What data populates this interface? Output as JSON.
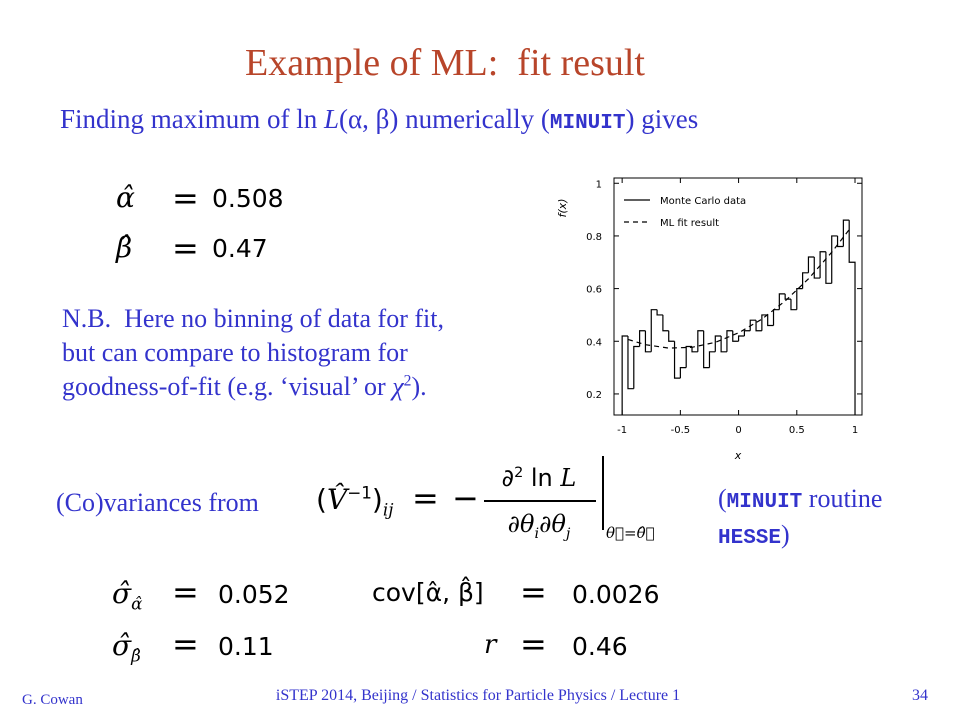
{
  "title": "Example of ML:  fit result",
  "intro": {
    "text": "Finding maximum of ln ",
    "L": "L",
    "args": "(α, β) numerically (",
    "code": "MINUIT",
    "end": ") gives"
  },
  "equals": "=",
  "estimates": [
    {
      "symbol": "α̂",
      "value": "0.508"
    },
    {
      "symbol": "β̂",
      "value": "0.47"
    }
  ],
  "note": {
    "lines": [
      "N.B.  Here no binning of data for fit,",
      "but can compare to histogram for",
      "goodness-of-fit (e.g. ‘visual’ or "
    ],
    "chi": "χ",
    "sup": "2",
    "end": ")."
  },
  "covariance": {
    "label": "(Co)variances from",
    "open": "(",
    "V": "V̂",
    "sup": "−1",
    "close": ")",
    "sub": "ij",
    "minus": "−",
    "numerator": "∂",
    "num_sup": "2",
    "num_rest": " ln ",
    "num_L": "L",
    "den1": "∂θ",
    "den_i": "i",
    "den2": "∂θ",
    "den_j": "j",
    "at": "θ⃗=θ̂⃗"
  },
  "routine": {
    "open": "(",
    "code1": "MINUIT",
    "text": " routine",
    "code2": "HESSE",
    "close": ")"
  },
  "results": {
    "sigma": "σ̂",
    "sigma_alpha_sub": "α̂",
    "sigma_alpha": "0.052",
    "sigma_beta_sub": "β̂",
    "sigma_beta": "0.11",
    "cov_label": "cov[α̂, β̂]",
    "cov": "0.0026",
    "r_label": "r",
    "r": "0.46"
  },
  "footer": {
    "author": "G. Cowan",
    "course": "iSTEP 2014, Beijing / Statistics for Particle Physics / Lecture 1",
    "page": "34"
  },
  "chart_data": {
    "type": "histogram",
    "xlabel": "x",
    "ylabel": "f(x)",
    "xlim": [
      -1.07,
      1.06
    ],
    "ylim": [
      0.12,
      1.02
    ],
    "xticks": [
      -1,
      -0.5,
      0,
      0.5,
      1
    ],
    "yticks": [
      0.2,
      0.4,
      0.6,
      0.8,
      1
    ],
    "legend": "top-left",
    "bins": [
      -1,
      -0.95,
      -0.9,
      -0.85,
      -0.8,
      -0.75,
      -0.7,
      -0.65,
      -0.6,
      -0.55,
      -0.5,
      -0.45,
      -0.4,
      -0.35,
      -0.3,
      -0.25,
      -0.2,
      -0.15,
      -0.1,
      -0.05,
      0,
      0.05,
      0.1,
      0.15,
      0.2,
      0.25,
      0.3,
      0.35,
      0.4,
      0.45,
      0.5,
      0.55,
      0.6,
      0.65,
      0.7,
      0.75,
      0.8,
      0.85,
      0.9,
      0.95,
      1
    ],
    "series": [
      {
        "name": "Monte Carlo data",
        "color": "#000000",
        "values": [
          0.42,
          0.22,
          0.38,
          0.44,
          0.36,
          0.52,
          0.5,
          0.44,
          0.4,
          0.26,
          0.3,
          0.38,
          0.36,
          0.44,
          0.3,
          0.36,
          0.42,
          0.36,
          0.44,
          0.4,
          0.42,
          0.44,
          0.48,
          0.44,
          0.5,
          0.46,
          0.52,
          0.58,
          0.56,
          0.52,
          0.6,
          0.66,
          0.72,
          0.64,
          0.74,
          0.62,
          0.8,
          0.76,
          0.86,
          0.7
        ]
      },
      {
        "name": "ML fit result",
        "color": "#000000",
        "dashed": true,
        "x": [
          -0.95,
          -0.8,
          -0.6,
          -0.4,
          -0.2,
          0,
          0.2,
          0.4,
          0.6,
          0.8,
          0.95
        ],
        "values": [
          0.407,
          0.387,
          0.374,
          0.377,
          0.396,
          0.432,
          0.484,
          0.553,
          0.637,
          0.738,
          0.824
        ]
      }
    ]
  }
}
